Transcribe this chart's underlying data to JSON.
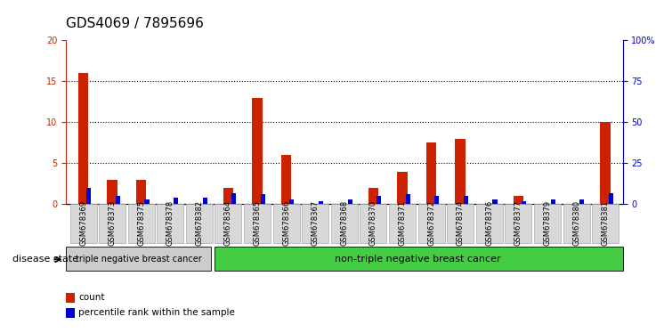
{
  "title": "GDS4069 / 7895696",
  "samples": [
    "GSM678369",
    "GSM678373",
    "GSM678375",
    "GSM678378",
    "GSM678382",
    "GSM678364",
    "GSM678365",
    "GSM678366",
    "GSM678367",
    "GSM678368",
    "GSM678370",
    "GSM678371",
    "GSM678372",
    "GSM678374",
    "GSM678376",
    "GSM678377",
    "GSM678379",
    "GSM678380",
    "GSM678381"
  ],
  "count_values": [
    16,
    3,
    3,
    0,
    0,
    2,
    13,
    6,
    0,
    0,
    2,
    4,
    7.5,
    8,
    0,
    1,
    0,
    0,
    10
  ],
  "percentile_values": [
    10,
    5,
    3,
    4,
    4,
    7,
    6,
    3,
    2,
    3,
    5,
    6,
    5,
    5,
    3,
    2,
    3,
    3,
    7
  ],
  "group1_label": "triple negative breast cancer",
  "group2_label": "non-triple negative breast cancer",
  "group1_count": 5,
  "group2_count": 14,
  "legend_count": "count",
  "legend_percentile": "percentile rank within the sample",
  "disease_state_label": "disease state",
  "ylim_left": [
    0,
    20
  ],
  "ylim_right": [
    0,
    100
  ],
  "yticks_left": [
    0,
    5,
    10,
    15,
    20
  ],
  "yticks_right": [
    0,
    25,
    50,
    75,
    100
  ],
  "yticklabels_right": [
    "0",
    "25",
    "50",
    "75",
    "100%"
  ],
  "bar_color_count": "#cc2200",
  "bar_color_percentile": "#0000cc",
  "group1_bg": "#cccccc",
  "group2_bg": "#44cc44",
  "dotted_line_color": "#000000",
  "title_fontsize": 11,
  "tick_fontsize": 7,
  "bar_width": 0.35
}
